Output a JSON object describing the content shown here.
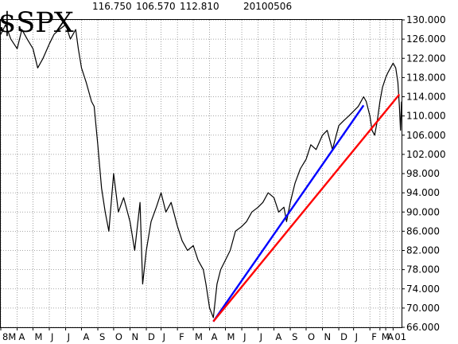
{
  "header": {
    "ticker": "$SPX",
    "high": "116.750",
    "low": "106.570",
    "close": "112.810",
    "date": "20100506"
  },
  "chart_data": {
    "type": "line",
    "title": "$SPX",
    "xlabel": "",
    "ylabel": "",
    "ylim": [
      66,
      130
    ],
    "y_ticks": [
      66,
      70,
      74,
      78,
      82,
      86,
      90,
      94,
      98,
      102,
      106,
      110,
      114,
      118,
      122,
      126,
      130
    ],
    "y_tick_labels": [
      "66.000",
      "70.000",
      "74.000",
      "78.000",
      "82.000",
      "86.000",
      "90.000",
      "94.000",
      "98.000",
      "102.000",
      "106.000",
      "110.000",
      "114.000",
      "118.000",
      "122.000",
      "126.000",
      "130.000"
    ],
    "x_range": [
      "2008-05-01",
      "2010-05-31"
    ],
    "x_ticks": [
      {
        "label": "8M",
        "date": "2008-05-01"
      },
      {
        "label": "A",
        "date": "2008-06-01"
      },
      {
        "label": "M",
        "date": "2008-07-01"
      },
      {
        "label": "J",
        "date": "2008-08-01"
      },
      {
        "label": "J",
        "date": "2008-09-01"
      },
      {
        "label": "A",
        "date": "2008-10-01"
      },
      {
        "label": "S",
        "date": "2008-11-01"
      },
      {
        "label": "O",
        "date": "2008-12-01"
      },
      {
        "label": "N",
        "date": "2009-01-01"
      },
      {
        "label": "D",
        "date": "2009-02-01"
      },
      {
        "label": "J",
        "date": "2009-03-01"
      },
      {
        "label": "F",
        "date": "2009-04-01"
      },
      {
        "label": "M",
        "date": "2009-05-01"
      },
      {
        "label": "A",
        "date": "2009-06-01"
      },
      {
        "label": "M",
        "date": "2009-07-01"
      },
      {
        "label": "J",
        "date": "2009-08-01"
      },
      {
        "label": "J",
        "date": "2009-09-01"
      },
      {
        "label": "A",
        "date": "2009-10-01"
      },
      {
        "label": "S",
        "date": "2009-11-01"
      },
      {
        "label": "O",
        "date": "2009-12-01"
      },
      {
        "label": "N",
        "date": "2010-01-01"
      },
      {
        "label": "D",
        "date": "2010-02-01"
      },
      {
        "label": "J",
        "date": "2010-03-01"
      },
      {
        "label": "F",
        "date": "2010-04-01"
      },
      {
        "label": "M",
        "date": "2010-04-20"
      },
      {
        "label": "A",
        "date": "2010-05-01"
      },
      {
        "label": "01",
        "date": "2010-05-15"
      }
    ],
    "grid": true,
    "series": [
      {
        "color": "#000000",
        "points": [
          [
            "2008-05-01",
            127
          ],
          [
            "2008-05-10",
            129
          ],
          [
            "2008-05-20",
            126
          ],
          [
            "2008-06-01",
            124
          ],
          [
            "2008-06-10",
            128
          ],
          [
            "2008-06-20",
            126
          ],
          [
            "2008-07-01",
            124
          ],
          [
            "2008-07-10",
            120
          ],
          [
            "2008-07-20",
            122
          ],
          [
            "2008-08-01",
            125
          ],
          [
            "2008-08-10",
            127
          ],
          [
            "2008-08-20",
            128
          ],
          [
            "2008-09-01",
            129
          ],
          [
            "2008-09-10",
            126
          ],
          [
            "2008-09-20",
            128
          ],
          [
            "2008-09-25",
            124
          ],
          [
            "2008-10-01",
            120
          ],
          [
            "2008-10-10",
            117
          ],
          [
            "2008-10-20",
            113
          ],
          [
            "2008-10-25",
            112
          ],
          [
            "2008-11-01",
            104
          ],
          [
            "2008-11-08",
            95
          ],
          [
            "2008-11-15",
            90
          ],
          [
            "2008-11-22",
            86
          ],
          [
            "2008-12-01",
            98
          ],
          [
            "2008-12-10",
            90
          ],
          [
            "2008-12-20",
            93
          ],
          [
            "2009-01-01",
            88
          ],
          [
            "2009-01-10",
            82
          ],
          [
            "2009-01-20",
            92
          ],
          [
            "2009-01-25",
            75
          ],
          [
            "2009-02-01",
            82
          ],
          [
            "2009-02-10",
            88
          ],
          [
            "2009-02-20",
            91
          ],
          [
            "2009-03-01",
            94
          ],
          [
            "2009-03-10",
            90
          ],
          [
            "2009-03-20",
            92
          ],
          [
            "2009-04-01",
            87
          ],
          [
            "2009-04-10",
            84
          ],
          [
            "2009-04-20",
            82
          ],
          [
            "2009-05-01",
            83
          ],
          [
            "2009-05-10",
            80
          ],
          [
            "2009-05-20",
            78
          ],
          [
            "2009-05-25",
            75
          ],
          [
            "2009-06-01",
            70
          ],
          [
            "2009-06-08",
            68
          ],
          [
            "2009-06-15",
            75
          ],
          [
            "2009-06-22",
            78
          ],
          [
            "2009-07-01",
            80
          ],
          [
            "2009-07-10",
            82
          ],
          [
            "2009-07-20",
            86
          ],
          [
            "2009-08-01",
            87
          ],
          [
            "2009-08-10",
            88
          ],
          [
            "2009-08-20",
            90
          ],
          [
            "2009-09-01",
            91
          ],
          [
            "2009-09-10",
            92
          ],
          [
            "2009-09-20",
            94
          ],
          [
            "2009-10-01",
            93
          ],
          [
            "2009-10-10",
            90
          ],
          [
            "2009-10-20",
            91
          ],
          [
            "2009-10-25",
            88
          ],
          [
            "2009-11-01",
            92
          ],
          [
            "2009-11-10",
            96
          ],
          [
            "2009-11-20",
            99
          ],
          [
            "2009-12-01",
            101
          ],
          [
            "2009-12-10",
            104
          ],
          [
            "2009-12-20",
            103
          ],
          [
            "2010-01-01",
            106
          ],
          [
            "2010-01-10",
            107
          ],
          [
            "2010-01-20",
            103
          ],
          [
            "2010-02-01",
            108
          ],
          [
            "2010-02-10",
            109
          ],
          [
            "2010-02-20",
            110
          ],
          [
            "2010-03-01",
            111
          ],
          [
            "2010-03-10",
            112
          ],
          [
            "2010-03-20",
            114
          ],
          [
            "2010-03-25",
            113
          ],
          [
            "2010-04-01",
            110
          ],
          [
            "2010-04-05",
            107
          ],
          [
            "2010-04-10",
            106
          ],
          [
            "2010-04-15",
            109
          ],
          [
            "2010-04-20",
            113
          ],
          [
            "2010-04-25",
            116
          ],
          [
            "2010-05-01",
            118
          ],
          [
            "2010-05-05",
            119
          ],
          [
            "2010-05-10",
            120
          ],
          [
            "2010-05-15",
            121
          ],
          [
            "2010-05-20",
            120
          ],
          [
            "2010-05-24",
            117
          ],
          [
            "2010-05-27",
            112
          ],
          [
            "2010-05-29",
            107
          ],
          [
            "2010-05-31",
            113
          ]
        ]
      }
    ],
    "trendlines": [
      {
        "color": "#0000ff",
        "from": [
          "2009-06-08",
          67.2
        ],
        "to": [
          "2010-03-20",
          112.2
        ]
      },
      {
        "color": "#ff0000",
        "from": [
          "2009-06-08",
          67.2
        ],
        "to": [
          "2010-05-27",
          114.5
        ]
      }
    ]
  }
}
